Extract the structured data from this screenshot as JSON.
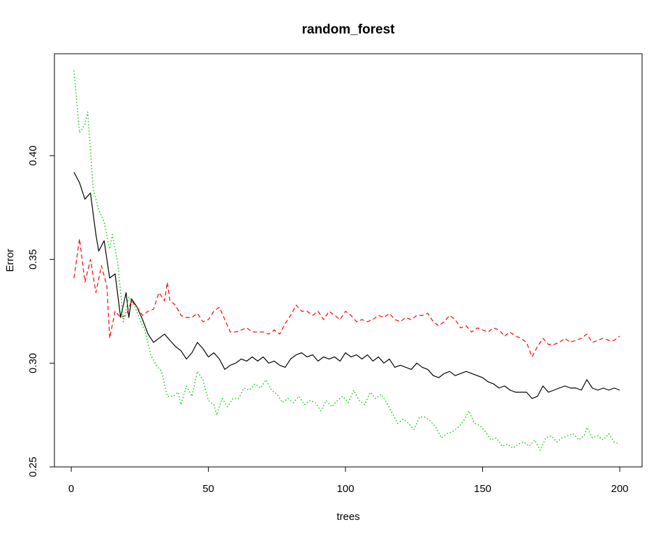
{
  "chart_data": {
    "type": "line",
    "title": "random_forest",
    "xlabel": "trees",
    "ylabel": "Error",
    "xlim": [
      1,
      200
    ],
    "ylim": [
      0.25,
      0.445
    ],
    "x_ticks": [
      0,
      50,
      100,
      150,
      200
    ],
    "y_ticks": [
      0.25,
      0.3,
      0.35,
      0.4
    ],
    "x_tick_labels": [
      "0",
      "50",
      "100",
      "150",
      "200"
    ],
    "y_tick_labels": [
      "0.25",
      "0.30",
      "0.35",
      "0.40"
    ],
    "grid": false,
    "series": [
      {
        "color": "#000000",
        "style": "solid",
        "points": [
          [
            1,
            0.392
          ],
          [
            3,
            0.387
          ],
          [
            5,
            0.379
          ],
          [
            7,
            0.382
          ],
          [
            9,
            0.362
          ],
          [
            10,
            0.354
          ],
          [
            12,
            0.359
          ],
          [
            14,
            0.341
          ],
          [
            16,
            0.343
          ],
          [
            18,
            0.322
          ],
          [
            20,
            0.334
          ],
          [
            21,
            0.322
          ],
          [
            22,
            0.331
          ],
          [
            24,
            0.327
          ],
          [
            26,
            0.321
          ],
          [
            28,
            0.314
          ],
          [
            30,
            0.31
          ],
          [
            32,
            0.312
          ],
          [
            34,
            0.314
          ],
          [
            36,
            0.311
          ],
          [
            38,
            0.308
          ],
          [
            40,
            0.306
          ],
          [
            42,
            0.302
          ],
          [
            44,
            0.305
          ],
          [
            46,
            0.31
          ],
          [
            48,
            0.307
          ],
          [
            50,
            0.303
          ],
          [
            52,
            0.305
          ],
          [
            54,
            0.302
          ],
          [
            56,
            0.297
          ],
          [
            58,
            0.299
          ],
          [
            60,
            0.3
          ],
          [
            62,
            0.302
          ],
          [
            64,
            0.301
          ],
          [
            66,
            0.303
          ],
          [
            68,
            0.301
          ],
          [
            70,
            0.303
          ],
          [
            72,
            0.3
          ],
          [
            74,
            0.301
          ],
          [
            76,
            0.299
          ],
          [
            78,
            0.298
          ],
          [
            80,
            0.302
          ],
          [
            82,
            0.304
          ],
          [
            84,
            0.305
          ],
          [
            86,
            0.303
          ],
          [
            88,
            0.304
          ],
          [
            90,
            0.301
          ],
          [
            92,
            0.303
          ],
          [
            94,
            0.302
          ],
          [
            96,
            0.303
          ],
          [
            98,
            0.301
          ],
          [
            100,
            0.305
          ],
          [
            102,
            0.303
          ],
          [
            104,
            0.304
          ],
          [
            106,
            0.302
          ],
          [
            108,
            0.304
          ],
          [
            110,
            0.301
          ],
          [
            112,
            0.303
          ],
          [
            114,
            0.3
          ],
          [
            116,
            0.302
          ],
          [
            118,
            0.298
          ],
          [
            120,
            0.299
          ],
          [
            122,
            0.298
          ],
          [
            124,
            0.297
          ],
          [
            126,
            0.3
          ],
          [
            128,
            0.298
          ],
          [
            130,
            0.297
          ],
          [
            132,
            0.294
          ],
          [
            134,
            0.293
          ],
          [
            136,
            0.295
          ],
          [
            138,
            0.296
          ],
          [
            140,
            0.294
          ],
          [
            142,
            0.295
          ],
          [
            144,
            0.296
          ],
          [
            146,
            0.295
          ],
          [
            148,
            0.294
          ],
          [
            150,
            0.293
          ],
          [
            152,
            0.291
          ],
          [
            154,
            0.29
          ],
          [
            156,
            0.288
          ],
          [
            158,
            0.289
          ],
          [
            160,
            0.287
          ],
          [
            162,
            0.286
          ],
          [
            164,
            0.286
          ],
          [
            166,
            0.286
          ],
          [
            168,
            0.283
          ],
          [
            170,
            0.284
          ],
          [
            172,
            0.289
          ],
          [
            174,
            0.286
          ],
          [
            176,
            0.287
          ],
          [
            178,
            0.288
          ],
          [
            180,
            0.289
          ],
          [
            182,
            0.288
          ],
          [
            184,
            0.288
          ],
          [
            186,
            0.287
          ],
          [
            188,
            0.292
          ],
          [
            190,
            0.288
          ],
          [
            192,
            0.287
          ],
          [
            194,
            0.288
          ],
          [
            196,
            0.287
          ],
          [
            198,
            0.288
          ],
          [
            200,
            0.287
          ]
        ]
      },
      {
        "color": "#ff0000",
        "style": "dashed",
        "points": [
          [
            1,
            0.341
          ],
          [
            3,
            0.36
          ],
          [
            5,
            0.339
          ],
          [
            7,
            0.35
          ],
          [
            9,
            0.334
          ],
          [
            11,
            0.347
          ],
          [
            13,
            0.337
          ],
          [
            14,
            0.312
          ],
          [
            16,
            0.325
          ],
          [
            18,
            0.322
          ],
          [
            20,
            0.323
          ],
          [
            22,
            0.33
          ],
          [
            24,
            0.327
          ],
          [
            26,
            0.323
          ],
          [
            28,
            0.325
          ],
          [
            30,
            0.326
          ],
          [
            32,
            0.334
          ],
          [
            34,
            0.33
          ],
          [
            35,
            0.339
          ],
          [
            36,
            0.33
          ],
          [
            38,
            0.328
          ],
          [
            40,
            0.323
          ],
          [
            42,
            0.322
          ],
          [
            44,
            0.322
          ],
          [
            46,
            0.324
          ],
          [
            48,
            0.32
          ],
          [
            50,
            0.321
          ],
          [
            52,
            0.325
          ],
          [
            54,
            0.327
          ],
          [
            56,
            0.321
          ],
          [
            58,
            0.315
          ],
          [
            60,
            0.315
          ],
          [
            62,
            0.316
          ],
          [
            64,
            0.317
          ],
          [
            66,
            0.315
          ],
          [
            68,
            0.315
          ],
          [
            70,
            0.315
          ],
          [
            72,
            0.314
          ],
          [
            74,
            0.316
          ],
          [
            76,
            0.314
          ],
          [
            78,
            0.319
          ],
          [
            80,
            0.323
          ],
          [
            82,
            0.328
          ],
          [
            84,
            0.325
          ],
          [
            86,
            0.325
          ],
          [
            88,
            0.323
          ],
          [
            90,
            0.325
          ],
          [
            92,
            0.321
          ],
          [
            94,
            0.325
          ],
          [
            96,
            0.323
          ],
          [
            98,
            0.321
          ],
          [
            100,
            0.325
          ],
          [
            102,
            0.323
          ],
          [
            104,
            0.32
          ],
          [
            106,
            0.321
          ],
          [
            108,
            0.32
          ],
          [
            110,
            0.321
          ],
          [
            112,
            0.323
          ],
          [
            114,
            0.322
          ],
          [
            116,
            0.324
          ],
          [
            118,
            0.321
          ],
          [
            120,
            0.32
          ],
          [
            122,
            0.322
          ],
          [
            124,
            0.321
          ],
          [
            126,
            0.323
          ],
          [
            128,
            0.323
          ],
          [
            130,
            0.324
          ],
          [
            132,
            0.32
          ],
          [
            134,
            0.318
          ],
          [
            136,
            0.32
          ],
          [
            138,
            0.323
          ],
          [
            140,
            0.321
          ],
          [
            142,
            0.317
          ],
          [
            144,
            0.318
          ],
          [
            146,
            0.315
          ],
          [
            148,
            0.317
          ],
          [
            150,
            0.316
          ],
          [
            152,
            0.315
          ],
          [
            154,
            0.317
          ],
          [
            156,
            0.316
          ],
          [
            158,
            0.313
          ],
          [
            160,
            0.315
          ],
          [
            162,
            0.313
          ],
          [
            164,
            0.312
          ],
          [
            166,
            0.31
          ],
          [
            168,
            0.303
          ],
          [
            170,
            0.308
          ],
          [
            172,
            0.312
          ],
          [
            174,
            0.309
          ],
          [
            176,
            0.309
          ],
          [
            178,
            0.31
          ],
          [
            180,
            0.312
          ],
          [
            182,
            0.31
          ],
          [
            184,
            0.311
          ],
          [
            186,
            0.312
          ],
          [
            188,
            0.314
          ],
          [
            190,
            0.31
          ],
          [
            192,
            0.311
          ],
          [
            194,
            0.312
          ],
          [
            196,
            0.311
          ],
          [
            198,
            0.311
          ],
          [
            200,
            0.313
          ]
        ]
      },
      {
        "color": "#00c800",
        "style": "dotted",
        "points": [
          [
            1,
            0.441
          ],
          [
            3,
            0.411
          ],
          [
            5,
            0.415
          ],
          [
            6,
            0.421
          ],
          [
            8,
            0.384
          ],
          [
            10,
            0.374
          ],
          [
            12,
            0.368
          ],
          [
            14,
            0.355
          ],
          [
            15,
            0.362
          ],
          [
            17,
            0.348
          ],
          [
            19,
            0.32
          ],
          [
            21,
            0.332
          ],
          [
            23,
            0.328
          ],
          [
            25,
            0.321
          ],
          [
            27,
            0.315
          ],
          [
            29,
            0.304
          ],
          [
            31,
            0.299
          ],
          [
            33,
            0.296
          ],
          [
            35,
            0.284
          ],
          [
            37,
            0.284
          ],
          [
            39,
            0.286
          ],
          [
            40,
            0.28
          ],
          [
            42,
            0.289
          ],
          [
            44,
            0.284
          ],
          [
            46,
            0.296
          ],
          [
            48,
            0.292
          ],
          [
            50,
            0.282
          ],
          [
            52,
            0.28
          ],
          [
            53,
            0.275
          ],
          [
            55,
            0.283
          ],
          [
            57,
            0.279
          ],
          [
            59,
            0.283
          ],
          [
            61,
            0.283
          ],
          [
            63,
            0.288
          ],
          [
            65,
            0.287
          ],
          [
            67,
            0.29
          ],
          [
            69,
            0.288
          ],
          [
            71,
            0.292
          ],
          [
            73,
            0.287
          ],
          [
            75,
            0.285
          ],
          [
            77,
            0.281
          ],
          [
            79,
            0.283
          ],
          [
            81,
            0.281
          ],
          [
            83,
            0.284
          ],
          [
            85,
            0.28
          ],
          [
            87,
            0.282
          ],
          [
            89,
            0.281
          ],
          [
            91,
            0.277
          ],
          [
            93,
            0.282
          ],
          [
            95,
            0.279
          ],
          [
            97,
            0.282
          ],
          [
            99,
            0.284
          ],
          [
            101,
            0.281
          ],
          [
            103,
            0.287
          ],
          [
            105,
            0.282
          ],
          [
            107,
            0.28
          ],
          [
            109,
            0.286
          ],
          [
            111,
            0.283
          ],
          [
            113,
            0.285
          ],
          [
            115,
            0.281
          ],
          [
            117,
            0.276
          ],
          [
            119,
            0.271
          ],
          [
            121,
            0.273
          ],
          [
            123,
            0.271
          ],
          [
            125,
            0.268
          ],
          [
            127,
            0.274
          ],
          [
            129,
            0.274
          ],
          [
            131,
            0.272
          ],
          [
            133,
            0.269
          ],
          [
            135,
            0.264
          ],
          [
            137,
            0.266
          ],
          [
            139,
            0.267
          ],
          [
            141,
            0.269
          ],
          [
            143,
            0.272
          ],
          [
            145,
            0.277
          ],
          [
            147,
            0.271
          ],
          [
            149,
            0.27
          ],
          [
            151,
            0.267
          ],
          [
            153,
            0.263
          ],
          [
            155,
            0.264
          ],
          [
            157,
            0.26
          ],
          [
            159,
            0.261
          ],
          [
            161,
            0.259
          ],
          [
            163,
            0.261
          ],
          [
            165,
            0.262
          ],
          [
            167,
            0.26
          ],
          [
            169,
            0.263
          ],
          [
            171,
            0.258
          ],
          [
            173,
            0.264
          ],
          [
            175,
            0.265
          ],
          [
            177,
            0.262
          ],
          [
            179,
            0.264
          ],
          [
            181,
            0.265
          ],
          [
            183,
            0.266
          ],
          [
            185,
            0.263
          ],
          [
            187,
            0.265
          ],
          [
            188,
            0.269
          ],
          [
            190,
            0.264
          ],
          [
            192,
            0.265
          ],
          [
            194,
            0.263
          ],
          [
            196,
            0.266
          ],
          [
            198,
            0.262
          ],
          [
            200,
            0.261
          ]
        ]
      }
    ]
  }
}
